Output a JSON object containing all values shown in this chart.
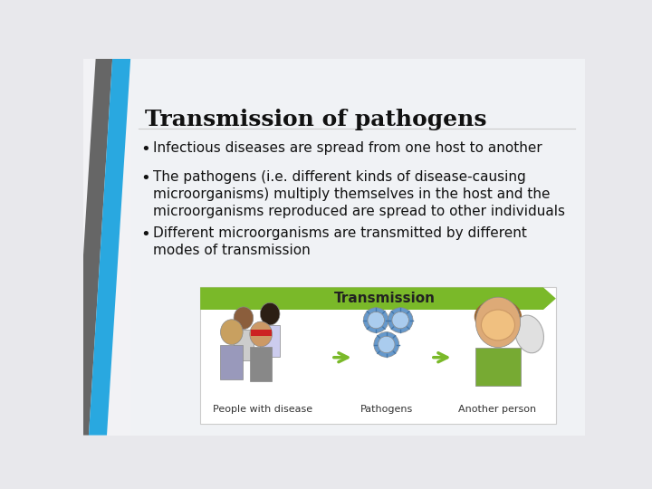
{
  "title": "Transmission of pathogens",
  "title_fontsize": 18,
  "bullets": [
    "Infectious diseases are spread from one host to another",
    "The pathogens (i.e. different kinds of disease-causing\nmicroorganisms) multiply themselves in the host and the\nmicroorganisms reproduced are spread to other individuals",
    "Different microorganisms are transmitted by different\nmodes of transmission"
  ],
  "bullet_fontsize": 11,
  "bg_color": "#e8e8ec",
  "slide_bg": "#f2f2f5",
  "gray_stripe_color": "#666666",
  "blue_stripe_color": "#29a8e0",
  "text_color": "#111111",
  "image_bg": "#f8f8f0",
  "green_banner_color": "#7ab929",
  "green_arrow_color": "#7ab929",
  "labels": [
    "People with disease",
    "Pathogens",
    "Another person"
  ],
  "label_fontsize": 8
}
